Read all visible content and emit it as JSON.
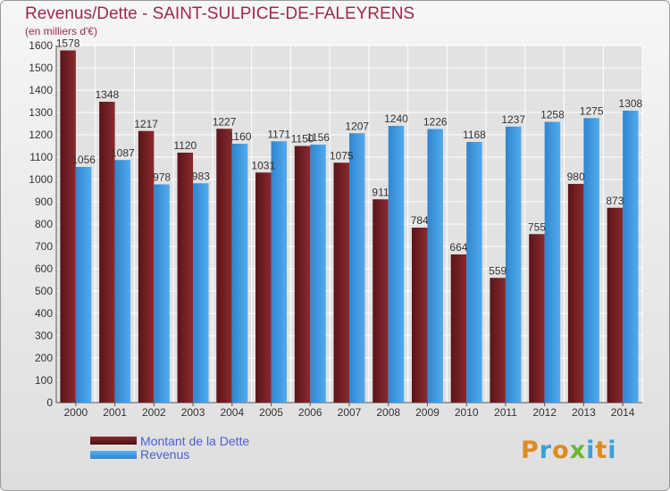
{
  "chart_data": {
    "type": "bar",
    "title": "Revenus/Dette - SAINT-SULPICE-DE-FALEYRENS",
    "subtitle": "(en milliers d'€)",
    "categories": [
      "2000",
      "2001",
      "2002",
      "2003",
      "2004",
      "2005",
      "2006",
      "2007",
      "2008",
      "2009",
      "2010",
      "2011",
      "2012",
      "2013",
      "2014"
    ],
    "series": [
      {
        "name": "Montant de la Dette",
        "color": "#7a1f24",
        "values": [
          1578,
          1348,
          1217,
          1120,
          1227,
          1031,
          1150,
          1075,
          911,
          784,
          664,
          559,
          755,
          980,
          873
        ]
      },
      {
        "name": "Revenus",
        "color": "#3d9be0",
        "values": [
          1056,
          1087,
          978,
          983,
          1160,
          1171,
          1156,
          1207,
          1240,
          1226,
          1168,
          1237,
          1258,
          1275,
          1308
        ]
      }
    ],
    "ylim": [
      0,
      1600
    ],
    "yticks": [
      0,
      100,
      200,
      300,
      400,
      500,
      600,
      700,
      800,
      900,
      1000,
      1100,
      1200,
      1300,
      1400,
      1500,
      1600
    ],
    "grid": true,
    "legend": "bottom-left"
  },
  "logo": {
    "letters": [
      "P",
      "r",
      "o",
      "x",
      "i",
      "t",
      "i"
    ],
    "colors": [
      "#e08a1e",
      "#3aa0d8",
      "#e08a1e",
      "#6ab82e",
      "#3aa0d8",
      "#e08a1e",
      "#3aa0d8"
    ]
  }
}
